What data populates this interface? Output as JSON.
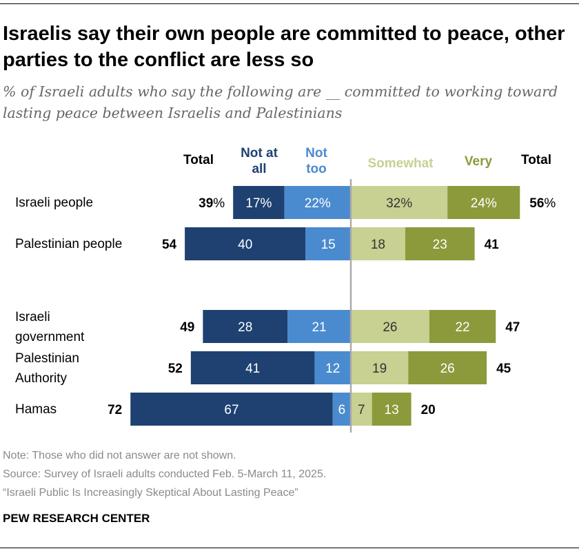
{
  "title": "Israelis say their own people are committed to peace, other parties to the conflict are less so",
  "subtitle": "% of Israeli adults who say the following are __ committed to working toward lasting peace between Israelis and Palestinians",
  "notes": {
    "note": "Note: Those who did not answer are not shown.",
    "source": "Source: Survey of Israeli adults conducted Feb. 5-March 11, 2025.",
    "report": "“Israeli Public Is Increasingly Skeptical About Lasting Peace”"
  },
  "brand": "PEW RESEARCH CENTER",
  "colors": {
    "not_at_all": "#1e4172",
    "not_too": "#4a8bcf",
    "somewhat": "#c8d092",
    "very": "#8c9a3c",
    "divider": "#aaaaaa"
  },
  "chart_data": {
    "type": "bar",
    "orientation": "horizontal-diverging",
    "headers": {
      "total_left": "Total",
      "not_at_all": [
        "Not at",
        "all"
      ],
      "not_too": [
        "Not",
        "too"
      ],
      "somewhat": "Somewhat",
      "very": "Very",
      "total_right": "Total"
    },
    "categories": [
      {
        "label": [
          "Israeli people"
        ],
        "not_at_all": 17,
        "not_too": 22,
        "somewhat": 32,
        "very": 24,
        "total_neg": 39,
        "total_pos": 56,
        "pct": true
      },
      {
        "label": [
          "Palestinian people"
        ],
        "not_at_all": 40,
        "not_too": 15,
        "somewhat": 18,
        "very": 23,
        "total_neg": 54,
        "total_pos": 41,
        "pct": false
      },
      {
        "label": [
          "Israeli",
          "government"
        ],
        "not_at_all": 28,
        "not_too": 21,
        "somewhat": 26,
        "very": 22,
        "total_neg": 49,
        "total_pos": 47,
        "pct": false
      },
      {
        "label": [
          "Palestinian",
          "Authority"
        ],
        "not_at_all": 41,
        "not_too": 12,
        "somewhat": 19,
        "very": 26,
        "total_neg": 52,
        "total_pos": 45,
        "pct": false
      },
      {
        "label": [
          "Hamas"
        ],
        "not_at_all": 67,
        "not_too": 6,
        "somewhat": 7,
        "very": 13,
        "total_neg": 72,
        "total_pos": 20,
        "pct": false
      }
    ]
  }
}
